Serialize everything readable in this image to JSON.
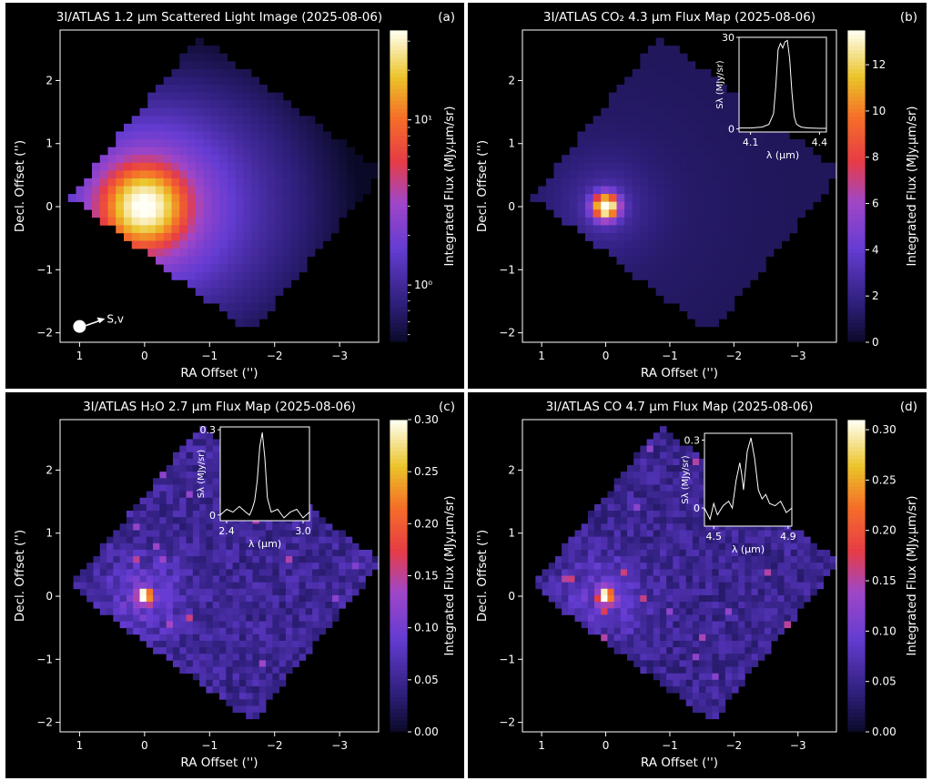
{
  "chart_data": [
    {
      "type": "heatmap",
      "panel_label": "(a)",
      "title": "3I/ATLAS 1.2 µm Scattered Light Image (2025-08-06)",
      "xlabel": "RA Offset ('')",
      "ylabel": "Decl. Offset ('')",
      "xlim": [
        1.3,
        -3.6
      ],
      "ylim": [
        -2.15,
        2.8
      ],
      "xticks": [
        1,
        0,
        -1,
        -2,
        -3
      ],
      "xtick_labels": [
        "1",
        "0",
        "−1",
        "−2",
        "−3"
      ],
      "yticks": [
        -2,
        -1,
        0,
        1,
        2
      ],
      "ytick_labels": [
        "−2",
        "−1",
        "0",
        "1",
        "2"
      ],
      "colorbar": {
        "label": "Integrated Flux (MJy.µm/sr)",
        "scale": "log",
        "range": [
          0.45,
          35
        ],
        "ticks": [
          1,
          10
        ],
        "tick_labels": [
          "10⁰",
          "10¹"
        ]
      },
      "colormap": "CMRmap",
      "peak": [
        0,
        0
      ],
      "peak_value": 35,
      "annotation": "S,v",
      "inset": null
    },
    {
      "type": "heatmap",
      "panel_label": "(b)",
      "title": "3I/ATLAS CO₂ 4.3 µm Flux Map (2025-08-06)",
      "xlabel": "RA Offset ('')",
      "ylabel": "Decl. Offset ('')",
      "xlim": [
        1.3,
        -3.6
      ],
      "ylim": [
        -2.15,
        2.8
      ],
      "xticks": [
        1,
        0,
        -1,
        -2,
        -3
      ],
      "xtick_labels": [
        "1",
        "0",
        "−1",
        "−2",
        "−3"
      ],
      "yticks": [
        -2,
        -1,
        0,
        1,
        2
      ],
      "ytick_labels": [
        "−2",
        "−1",
        "0",
        "1",
        "2"
      ],
      "colorbar": {
        "label": "Integrated Flux (MJy.µm/sr)",
        "scale": "linear",
        "range": [
          0,
          13.5
        ],
        "ticks": [
          0,
          2,
          4,
          6,
          8,
          10,
          12
        ],
        "tick_labels": [
          "0",
          "2",
          "4",
          "6",
          "8",
          "10",
          "12"
        ]
      },
      "colormap": "CMRmap",
      "peak": [
        0,
        0
      ],
      "peak_value": 13.5,
      "inset": {
        "xlabel": "λ (µm)",
        "ylabel": "Sλ (MJy/sr)",
        "xlim": [
          4.05,
          4.43
        ],
        "ylim": [
          -1,
          30
        ],
        "xticks": [
          4.1,
          4.4
        ],
        "xtick_labels": [
          "4.1",
          "4.4"
        ],
        "yticks": [
          0,
          30
        ],
        "ytick_labels": [
          "0",
          "30"
        ],
        "x": [
          4.05,
          4.1,
          4.15,
          4.18,
          4.2,
          4.21,
          4.22,
          4.23,
          4.24,
          4.25,
          4.26,
          4.27,
          4.28,
          4.29,
          4.3,
          4.32,
          4.35,
          4.4,
          4.43
        ],
        "y": [
          0.3,
          0.3,
          0.6,
          1.5,
          5,
          14,
          26,
          28,
          26.5,
          28.5,
          29,
          23,
          12,
          4,
          1.5,
          0.6,
          0.3,
          0.2,
          0.2
        ]
      }
    },
    {
      "type": "heatmap",
      "panel_label": "(c)",
      "title": "3I/ATLAS H₂O 2.7 µm Flux Map (2025-08-06)",
      "xlabel": "RA Offset ('')",
      "ylabel": "Decl. Offset ('')",
      "xlim": [
        1.3,
        -3.6
      ],
      "ylim": [
        -2.15,
        2.8
      ],
      "xticks": [
        1,
        0,
        -1,
        -2,
        -3
      ],
      "xtick_labels": [
        "1",
        "0",
        "−1",
        "−2",
        "−3"
      ],
      "yticks": [
        -2,
        -1,
        0,
        1,
        2
      ],
      "ytick_labels": [
        "−2",
        "−1",
        "0",
        "1",
        "2"
      ],
      "colorbar": {
        "label": "Integrated Flux (MJy.µm/sr)",
        "scale": "linear",
        "range": [
          0,
          0.3
        ],
        "ticks": [
          0,
          0.05,
          0.1,
          0.15,
          0.2,
          0.25,
          0.3
        ],
        "tick_labels": [
          "0.00",
          "0.05",
          "0.10",
          "0.15",
          "0.20",
          "0.25",
          "0.30"
        ]
      },
      "colormap": "CMRmap",
      "peak": [
        0,
        0
      ],
      "peak_value": 0.3,
      "inset": {
        "xlabel": "λ (µm)",
        "ylabel": "Sλ (MJy/sr)",
        "xlim": [
          2.35,
          3.05
        ],
        "ylim": [
          -0.02,
          0.31
        ],
        "xticks": [
          2.4,
          3.0
        ],
        "xtick_labels": [
          "2.4",
          "3.0"
        ],
        "yticks": [
          0,
          0.3
        ],
        "ytick_labels": [
          "0",
          "0.3"
        ],
        "x": [
          2.35,
          2.4,
          2.45,
          2.5,
          2.55,
          2.58,
          2.6,
          2.62,
          2.64,
          2.66,
          2.68,
          2.7,
          2.72,
          2.75,
          2.8,
          2.85,
          2.9,
          2.95,
          3.0,
          3.05
        ],
        "y": [
          0.0,
          0.02,
          0.01,
          0.03,
          0.01,
          0.0,
          0.02,
          0.05,
          0.12,
          0.24,
          0.29,
          0.2,
          0.06,
          0.01,
          0.02,
          -0.01,
          0.01,
          0.02,
          -0.01,
          0.01
        ]
      }
    },
    {
      "type": "heatmap",
      "panel_label": "(d)",
      "title": "3I/ATLAS CO 4.7 µm Flux Map (2025-08-06)",
      "xlabel": "RA Offset ('')",
      "ylabel": "Decl. Offset ('')",
      "xlim": [
        1.3,
        -3.6
      ],
      "ylim": [
        -2.15,
        2.8
      ],
      "xticks": [
        1,
        0,
        -1,
        -2,
        -3
      ],
      "xtick_labels": [
        "1",
        "0",
        "−1",
        "−2",
        "−3"
      ],
      "yticks": [
        -2,
        -1,
        0,
        1,
        2
      ],
      "ytick_labels": [
        "−2",
        "−1",
        "0",
        "1",
        "2"
      ],
      "colorbar": {
        "label": "Integrated Flux (MJy.µm/sr)",
        "scale": "linear",
        "range": [
          0,
          0.31
        ],
        "ticks": [
          0,
          0.05,
          0.1,
          0.15,
          0.2,
          0.25,
          0.3
        ],
        "tick_labels": [
          "0.00",
          "0.05",
          "0.10",
          "0.15",
          "0.20",
          "0.25",
          "0.30"
        ]
      },
      "colormap": "CMRmap",
      "peak": [
        0,
        0
      ],
      "peak_value": 0.31,
      "inset": {
        "xlabel": "λ (µm)",
        "ylabel": "Sλ (MJy/sr)",
        "xlim": [
          4.45,
          4.92
        ],
        "ylim": [
          -0.08,
          0.33
        ],
        "xticks": [
          4.5,
          4.9
        ],
        "xtick_labels": [
          "4.5",
          "4.9"
        ],
        "yticks": [
          0,
          0.3
        ],
        "ytick_labels": [
          "0",
          "0.3"
        ],
        "x": [
          4.45,
          4.48,
          4.5,
          4.52,
          4.55,
          4.58,
          4.6,
          4.62,
          4.64,
          4.65,
          4.66,
          4.68,
          4.7,
          4.72,
          4.74,
          4.76,
          4.78,
          4.8,
          4.83,
          4.86,
          4.89,
          4.92
        ],
        "y": [
          0.0,
          -0.05,
          0.02,
          -0.03,
          0.01,
          0.03,
          0.0,
          0.12,
          0.2,
          0.15,
          0.08,
          0.25,
          0.31,
          0.22,
          0.08,
          0.04,
          0.06,
          0.02,
          0.01,
          0.03,
          -0.02,
          0.0
        ]
      }
    }
  ]
}
